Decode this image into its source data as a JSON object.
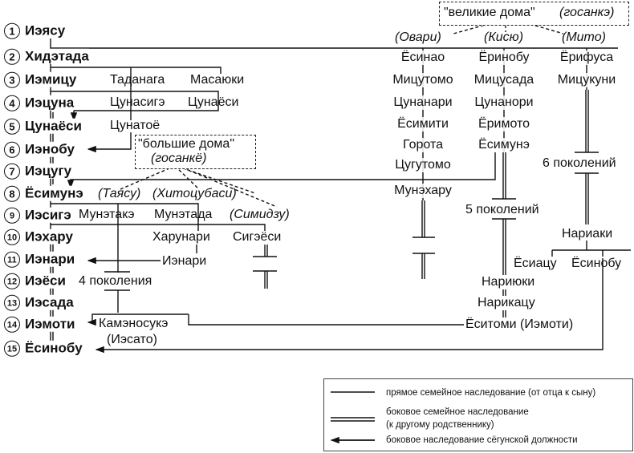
{
  "shoguns": [
    {
      "num": "1",
      "name": "Иэясу"
    },
    {
      "num": "2",
      "name": "Хидэтада"
    },
    {
      "num": "3",
      "name": "Иэмицу"
    },
    {
      "num": "4",
      "name": "Иэцуна"
    },
    {
      "num": "5",
      "name": "Цунаёси"
    },
    {
      "num": "6",
      "name": "Иэнобу"
    },
    {
      "num": "7",
      "name": "Иэцугу"
    },
    {
      "num": "8",
      "name": "Ёсимунэ"
    },
    {
      "num": "9",
      "name": "Иэсигэ"
    },
    {
      "num": "10",
      "name": "Иэхару"
    },
    {
      "num": "11",
      "name": "Иэнари"
    },
    {
      "num": "12",
      "name": "Иэёси"
    },
    {
      "num": "13",
      "name": "Иэсада"
    },
    {
      "num": "14",
      "name": "Иэмоти"
    },
    {
      "num": "15",
      "name": "Ёсинобу"
    }
  ],
  "relatives": {
    "tadanaga": "Таданага",
    "masayuki": "Масаюки",
    "tsunasige": "Цунасигэ",
    "tsunayosi": "Цунаёси",
    "tsunatoyo": "Цунатоё",
    "munetake": "Мунэтакэ",
    "munetada": "Мунэтада",
    "harunari": "Харунари",
    "sigeyosi": "Сигэёси",
    "ienari": "Иэнари",
    "gen4": "4 поколения",
    "kamenosuke": "Камэносукэ",
    "iesato": "(Иэсато)"
  },
  "small_houses": {
    "title": "\"большие дома\"",
    "subtitle": "(госанкё)",
    "tayasu": "(Таясу)",
    "hitotsubashi": "(Хитоцубаси)",
    "simidzu": "(Симидзу)"
  },
  "great_houses": {
    "title": "\"великие дома\"",
    "subtitle": "(госанкэ)",
    "owari": {
      "label": "(Овари)",
      "members": [
        "Ёсинао",
        "Мицутомо",
        "Цунанари",
        "Ёсимити",
        "Горота",
        "Цугутомо",
        "Мунэхару"
      ]
    },
    "kisyu": {
      "label": "(Кисю)",
      "members": [
        "Ёринобу",
        "Мицусада",
        "Цунанори",
        "Ёримото",
        "Ёсимунэ"
      ],
      "gen": "5 поколений",
      "later": [
        "Нариюки",
        "Нарикацу",
        "Ёситоми (Иэмоти)"
      ]
    },
    "mito": {
      "label": "(Мито)",
      "members": [
        "Ёрифуса",
        "Мицукуни"
      ],
      "gen": "6 поколений",
      "later": [
        "Нариаки",
        "Ёсиацу",
        "Ёсинобу"
      ]
    }
  },
  "legend": [
    {
      "type": "single",
      "text": "прямое семейное наследование (от отца к сыну)"
    },
    {
      "type": "double",
      "text": "боковое семейное наследование",
      "text2": "(к другому родственнику)"
    },
    {
      "type": "arrow",
      "text": "боковое наследование сёгунской должности"
    }
  ]
}
